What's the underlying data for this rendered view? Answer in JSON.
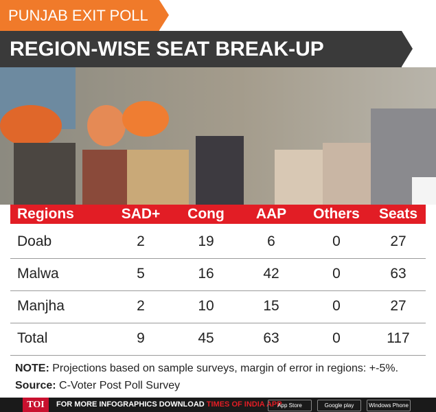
{
  "header": {
    "tag": "PUNJAB EXIT POLL",
    "title": "REGION-WISE SEAT BREAK-UP"
  },
  "table": {
    "columns": [
      "Regions",
      "SAD+",
      "Cong",
      "AAP",
      "Others",
      "Seats"
    ],
    "rows": [
      [
        "Doab",
        2,
        19,
        6,
        0,
        27
      ],
      [
        "Malwa",
        5,
        16,
        42,
        0,
        63
      ],
      [
        "Manjha",
        2,
        10,
        15,
        0,
        27
      ],
      [
        "Total",
        9,
        45,
        63,
        0,
        117
      ]
    ]
  },
  "notes": {
    "note_label": "NOTE:",
    "note_text": "Projections based on sample surveys, margin of error in regions: +-5%.",
    "source_label": "Source:",
    "source_text": "C-Voter Post Poll Survey"
  },
  "footer": {
    "logo": "TOI",
    "text": "FOR MORE INFOGRAPHICS DOWNLOAD",
    "app": "TIMES OF INDIA APP",
    "badges": [
      "App Store",
      "Google play",
      "Windows Phone"
    ]
  }
}
